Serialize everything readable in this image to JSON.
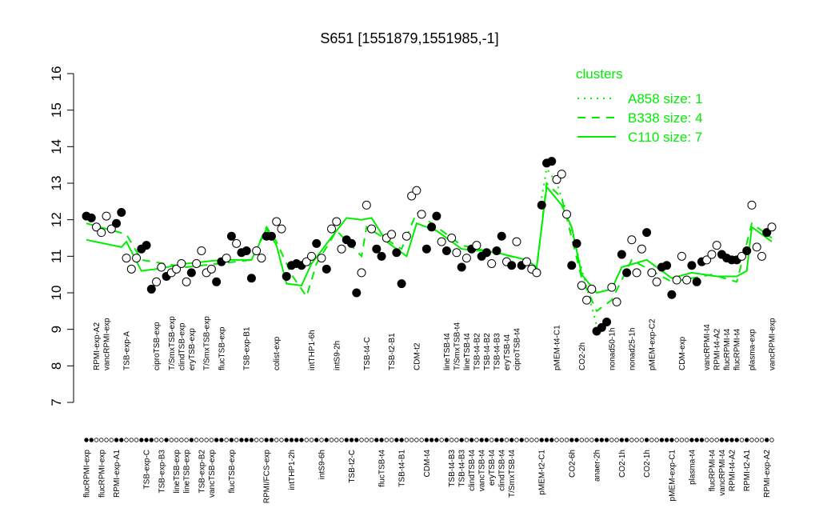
{
  "chart_data": {
    "type": "scatter",
    "title": "S651 [1551879,1551985,-1]",
    "ylim": [
      7,
      16
    ],
    "yticks": [
      7,
      8,
      9,
      10,
      11,
      12,
      13,
      14,
      15,
      16
    ],
    "legend_title": "clusters",
    "legend": "top-right",
    "point_color": "#000000",
    "categories": [
      "flucRPMI-exp",
      null,
      "RPMI-exp-A2",
      "flucRPMI-exp",
      "vancRPMI-exp",
      null,
      "RPMI-exp-A1",
      null,
      "TSB-exp-A",
      null,
      null,
      null,
      "TSB-exp-C",
      null,
      "ciproTSB-exp",
      "TSB-exp-B3",
      null,
      "T/SmxTSB-exp",
      "lineTSB-exp",
      "clindTSB-exp",
      "lineTSB-exp",
      "eryTSB-exp",
      null,
      "TSB-exp-B2",
      "T/SmxTSB-exp",
      "vancTSB-exp",
      null,
      "flucTSB-exp",
      null,
      "flucTSB-exp",
      null,
      null,
      "TSB-exp-B1",
      null,
      null,
      null,
      "RPMI/FCS-exp",
      null,
      "colist-exp",
      null,
      null,
      "intTHP1-2h",
      null,
      null,
      null,
      "intTHP1-6h",
      null,
      "intS9-6h",
      null,
      null,
      "intS9-2h",
      null,
      null,
      "TSB-t2-C",
      null,
      null,
      "TSB-t4-C",
      null,
      null,
      "flucTSB-t4",
      null,
      "TSB-t2-B1",
      null,
      "TSB-t4-B1",
      null,
      null,
      "CDM-t2",
      null,
      "CDM-t4",
      null,
      null,
      null,
      "lineTSB-t4",
      "TSB-t4-B3",
      "T/SmxTSB-t4",
      "TSB-t4-B3",
      "lineTSB-t4",
      "clindTSB-t4",
      "TSB-t4-B2",
      "vancTSB-t4",
      "TSB-t4-B2",
      "eryTSB-t4",
      "TSB-t4-B3",
      "clindTSB-t4",
      "eryTSB-t4",
      "T/SmxTSB-t4",
      "ciproTSB-t4",
      null,
      null,
      null,
      null,
      "pMEM-t2-C1",
      null,
      null,
      "pMEM-t4-C1",
      null,
      null,
      "CO2-6h",
      null,
      "CO2-2h",
      null,
      null,
      "anaer-2h",
      null,
      null,
      "nonad50-1h",
      null,
      "CO2-1h",
      null,
      "nonad25-1h",
      null,
      null,
      "CO2-1h",
      "pMEM-exp-C2",
      null,
      null,
      null,
      "pMEM-exp-C1",
      null,
      "CDM-exp",
      null,
      "plasma-t4",
      null,
      null,
      "vancRPMI-t4",
      "flucRPMI-t4",
      "RPMI-t4-A2",
      "vancRPMI-t4",
      "flucRPMI-t4",
      "RPMI-t4-A2",
      "flucRPMI-t4",
      null,
      "RPMI-t2-A1",
      "plasma-exp",
      null,
      null,
      "RPMI-exp-A2",
      "vancRPMI-exp"
    ],
    "values": [
      12.1,
      12.05,
      11.8,
      11.65,
      12.1,
      11.75,
      11.9,
      12.2,
      10.95,
      10.65,
      10.95,
      11.2,
      11.3,
      10.1,
      10.3,
      10.7,
      10.45,
      10.55,
      10.65,
      10.8,
      10.3,
      10.55,
      10.8,
      11.15,
      10.55,
      10.65,
      10.3,
      10.85,
      10.95,
      11.55,
      11.35,
      11.1,
      11.15,
      10.4,
      11.15,
      10.95,
      11.55,
      11.55,
      11.95,
      11.75,
      10.45,
      10.75,
      10.8,
      10.75,
      10.85,
      11.0,
      11.35,
      10.95,
      10.65,
      11.75,
      11.95,
      11.2,
      11.45,
      11.35,
      10.0,
      10.55,
      12.4,
      11.75,
      11.2,
      11.0,
      11.5,
      11.6,
      11.1,
      10.25,
      11.55,
      12.65,
      12.8,
      12.15,
      11.2,
      11.8,
      12.1,
      11.4,
      11.15,
      11.5,
      11.1,
      10.7,
      10.95,
      11.2,
      11.3,
      11.0,
      11.1,
      10.8,
      11.15,
      11.55,
      10.85,
      10.75,
      11.4,
      10.75,
      10.85,
      10.65,
      10.55,
      12.4,
      13.55,
      13.6,
      13.1,
      13.25,
      12.15,
      10.75,
      11.35,
      10.2,
      9.8,
      10.1,
      8.95,
      9.05,
      9.2,
      10.15,
      9.75,
      11.05,
      10.55,
      11.45,
      10.55,
      11.2,
      11.65,
      10.55,
      10.3,
      10.7,
      10.75,
      9.95,
      10.35,
      11.0,
      10.35,
      10.75,
      10.3,
      10.85,
      10.9,
      11.05,
      11.3,
      11.05,
      10.95,
      10.9,
      10.9,
      11.0,
      11.15,
      12.4,
      11.25,
      11.0,
      11.65,
      11.8
    ],
    "filled": [
      1,
      1,
      0,
      0,
      0,
      0,
      1,
      1,
      0,
      0,
      0,
      1,
      1,
      1,
      0,
      0,
      1,
      0,
      0,
      0,
      0,
      1,
      0,
      0,
      0,
      0,
      1,
      1,
      0,
      1,
      0,
      1,
      1,
      1,
      0,
      0,
      1,
      1,
      0,
      0,
      1,
      1,
      1,
      1,
      0,
      0,
      1,
      0,
      1,
      0,
      0,
      0,
      1,
      1,
      1,
      0,
      0,
      0,
      1,
      1,
      0,
      0,
      1,
      1,
      0,
      0,
      0,
      0,
      1,
      1,
      1,
      0,
      1,
      0,
      0,
      1,
      0,
      1,
      0,
      1,
      1,
      0,
      1,
      1,
      0,
      1,
      0,
      1,
      0,
      0,
      0,
      1,
      1,
      1,
      0,
      0,
      0,
      1,
      1,
      0,
      0,
      0,
      1,
      1,
      1,
      0,
      0,
      1,
      1,
      0,
      0,
      0,
      1,
      0,
      0,
      1,
      1,
      1,
      0,
      0,
      0,
      1,
      1,
      1,
      0,
      0,
      0,
      1,
      1,
      1,
      1,
      0,
      1,
      0,
      0,
      0,
      1,
      0
    ],
    "series": [
      {
        "name": "A858 size: 1",
        "color": "#00ee00",
        "dash": "dotted",
        "x": [
          91,
          92,
          94,
          96,
          102,
          104
        ],
        "values": [
          12.6,
          13.4,
          13.0,
          12.2,
          9.1,
          9.2
        ]
      },
      {
        "name": "B338 size: 4",
        "color": "#00ee00",
        "dash": "dashed",
        "x": [
          0,
          8,
          11,
          20,
          33,
          36,
          38,
          41,
          44,
          46,
          50,
          55,
          56,
          63,
          66,
          75,
          88,
          90,
          92,
          95,
          99,
          102,
          105,
          109,
          117,
          125,
          130,
          133,
          137
        ],
        "values": [
          11.9,
          11.6,
          10.9,
          10.7,
          10.9,
          11.8,
          11.4,
          10.5,
          9.9,
          10.8,
          11.7,
          11.0,
          11.8,
          11.2,
          12.2,
          11.3,
          10.9,
          10.65,
          13.0,
          12.6,
          10.4,
          9.5,
          9.8,
          10.9,
          10.3,
          10.5,
          10.3,
          11.9,
          11.5
        ]
      },
      {
        "name": "C110 size: 7",
        "color": "#00ee00",
        "dash": "solid",
        "x": [
          0,
          7,
          8,
          11,
          14,
          20,
          27,
          33,
          36,
          38,
          40,
          43,
          45,
          50,
          52,
          55,
          57,
          60,
          64,
          66,
          70,
          75,
          82,
          88,
          90,
          92,
          95,
          97,
          99,
          102,
          105,
          107,
          112,
          117,
          121,
          126,
          130,
          132,
          133,
          137
        ],
        "values": [
          11.45,
          11.25,
          11.4,
          10.6,
          10.65,
          10.8,
          10.9,
          10.9,
          11.75,
          11.3,
          10.25,
          10.2,
          10.8,
          11.7,
          12.05,
          12.0,
          12.05,
          11.4,
          11.0,
          11.9,
          11.7,
          11.2,
          11.1,
          10.9,
          10.7,
          12.9,
          12.4,
          11.8,
          10.5,
          10.0,
          10.1,
          10.7,
          10.9,
          10.4,
          10.55,
          10.45,
          10.45,
          10.6,
          11.8,
          11.4
        ]
      }
    ]
  }
}
